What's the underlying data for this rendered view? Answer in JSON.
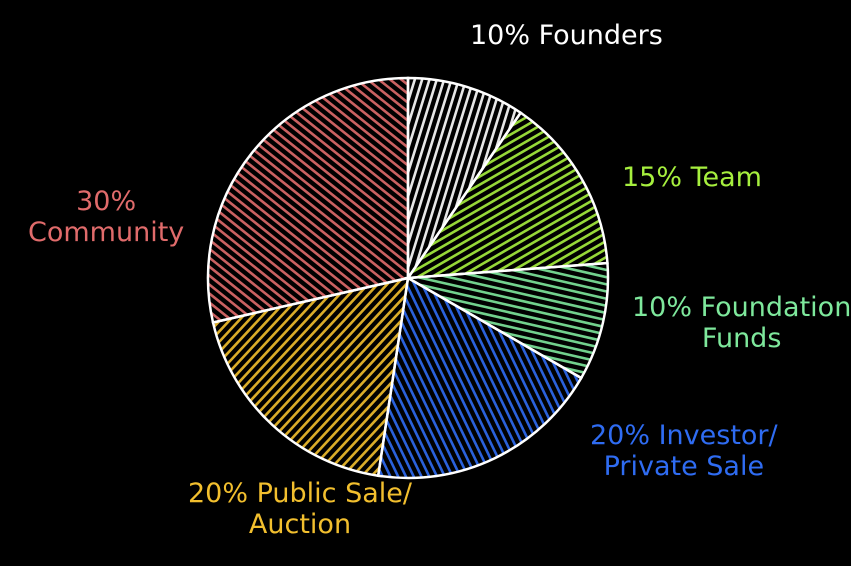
{
  "chart_data": {
    "type": "pie",
    "title": "",
    "slices": [
      {
        "label_lines": [
          "10% Founders"
        ],
        "value": 10,
        "color": "#ffffff"
      },
      {
        "label_lines": [
          "15% Team"
        ],
        "value": 15,
        "color": "#a6ef3e"
      },
      {
        "label_lines": [
          "10% Foundation",
          "Funds"
        ],
        "value": 10,
        "color": "#7ee89c"
      },
      {
        "label_lines": [
          "20% Investor/",
          "Private Sale"
        ],
        "value": 20,
        "color": "#2f6cf2"
      },
      {
        "label_lines": [
          "20% Public Sale/",
          "Auction"
        ],
        "value": 20,
        "color": "#f2bf2e"
      },
      {
        "label_lines": [
          "30%",
          "Community"
        ],
        "value": 30,
        "color": "#e06b6b"
      }
    ],
    "outline_color": "#ffffff",
    "background": "#000000"
  }
}
